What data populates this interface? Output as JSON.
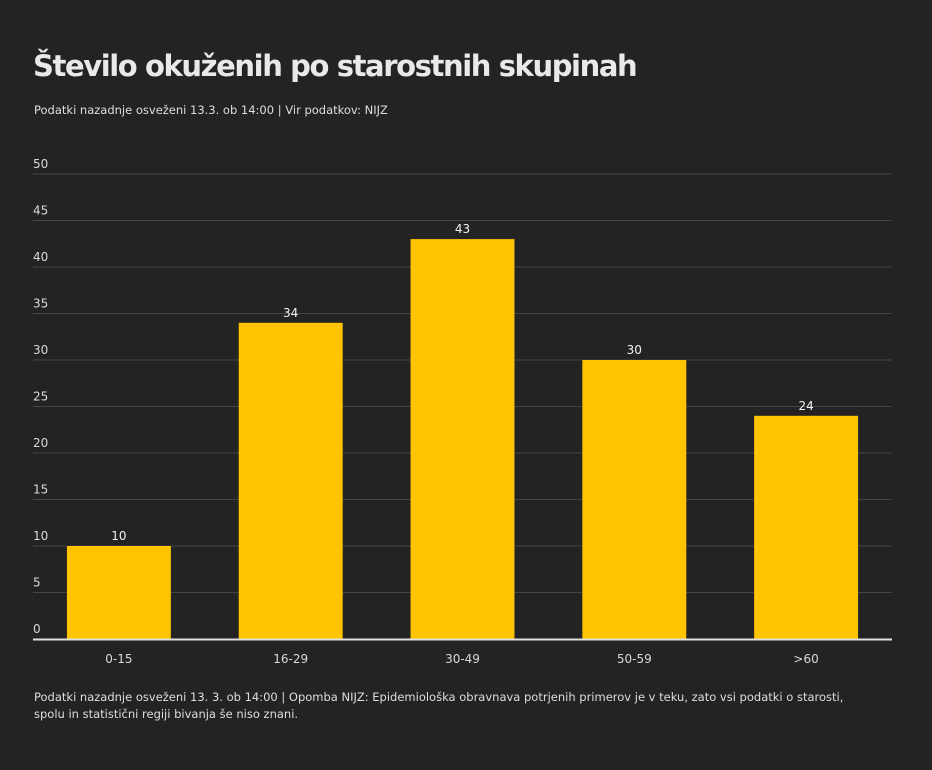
{
  "chart_data": {
    "type": "bar",
    "title": "Število okuženih po starostnih skupinah",
    "subtitle": "Podatki nazadnje osveženi 13.3. ob 14:00 | Vir podatkov: NIJZ",
    "note": "Podatki nazadnje osveženi 13. 3. ob 14:00 | Opomba NIJZ: Epidemiološka obravnava potrjenih primerov je v teku, zato vsi podatki o starosti, spolu in statistični regiji bivanja še niso znani.",
    "categories": [
      "0-15",
      "16-29",
      "30-49",
      "50-59",
      ">60"
    ],
    "values": [
      10,
      34,
      43,
      30,
      24
    ],
    "ylim": [
      0,
      50
    ],
    "yticks": [
      0,
      5,
      10,
      15,
      20,
      25,
      30,
      35,
      40,
      45,
      50
    ],
    "grid": true,
    "data_labels": true,
    "legend": "none",
    "colors": {
      "bar": "#ffc400",
      "background": "#232323",
      "grid": "#444444",
      "axis": "#e0e0e0"
    }
  }
}
